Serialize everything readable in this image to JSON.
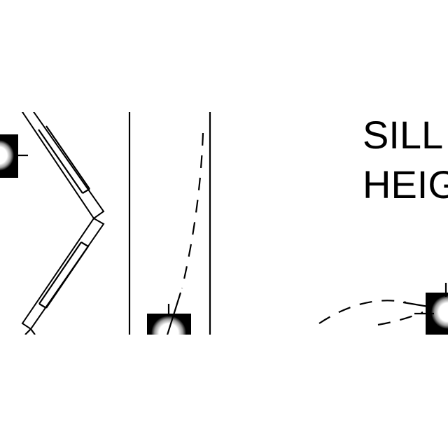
{
  "labels": {
    "line1": "SILL",
    "line2": "HEIG"
  },
  "symbols": [
    {
      "name": "pivot-symbol-left"
    },
    {
      "name": "pivot-symbol-center"
    },
    {
      "name": "pivot-symbol-right"
    }
  ],
  "colors": {
    "ink": "#000000",
    "paper": "#ffffff"
  }
}
